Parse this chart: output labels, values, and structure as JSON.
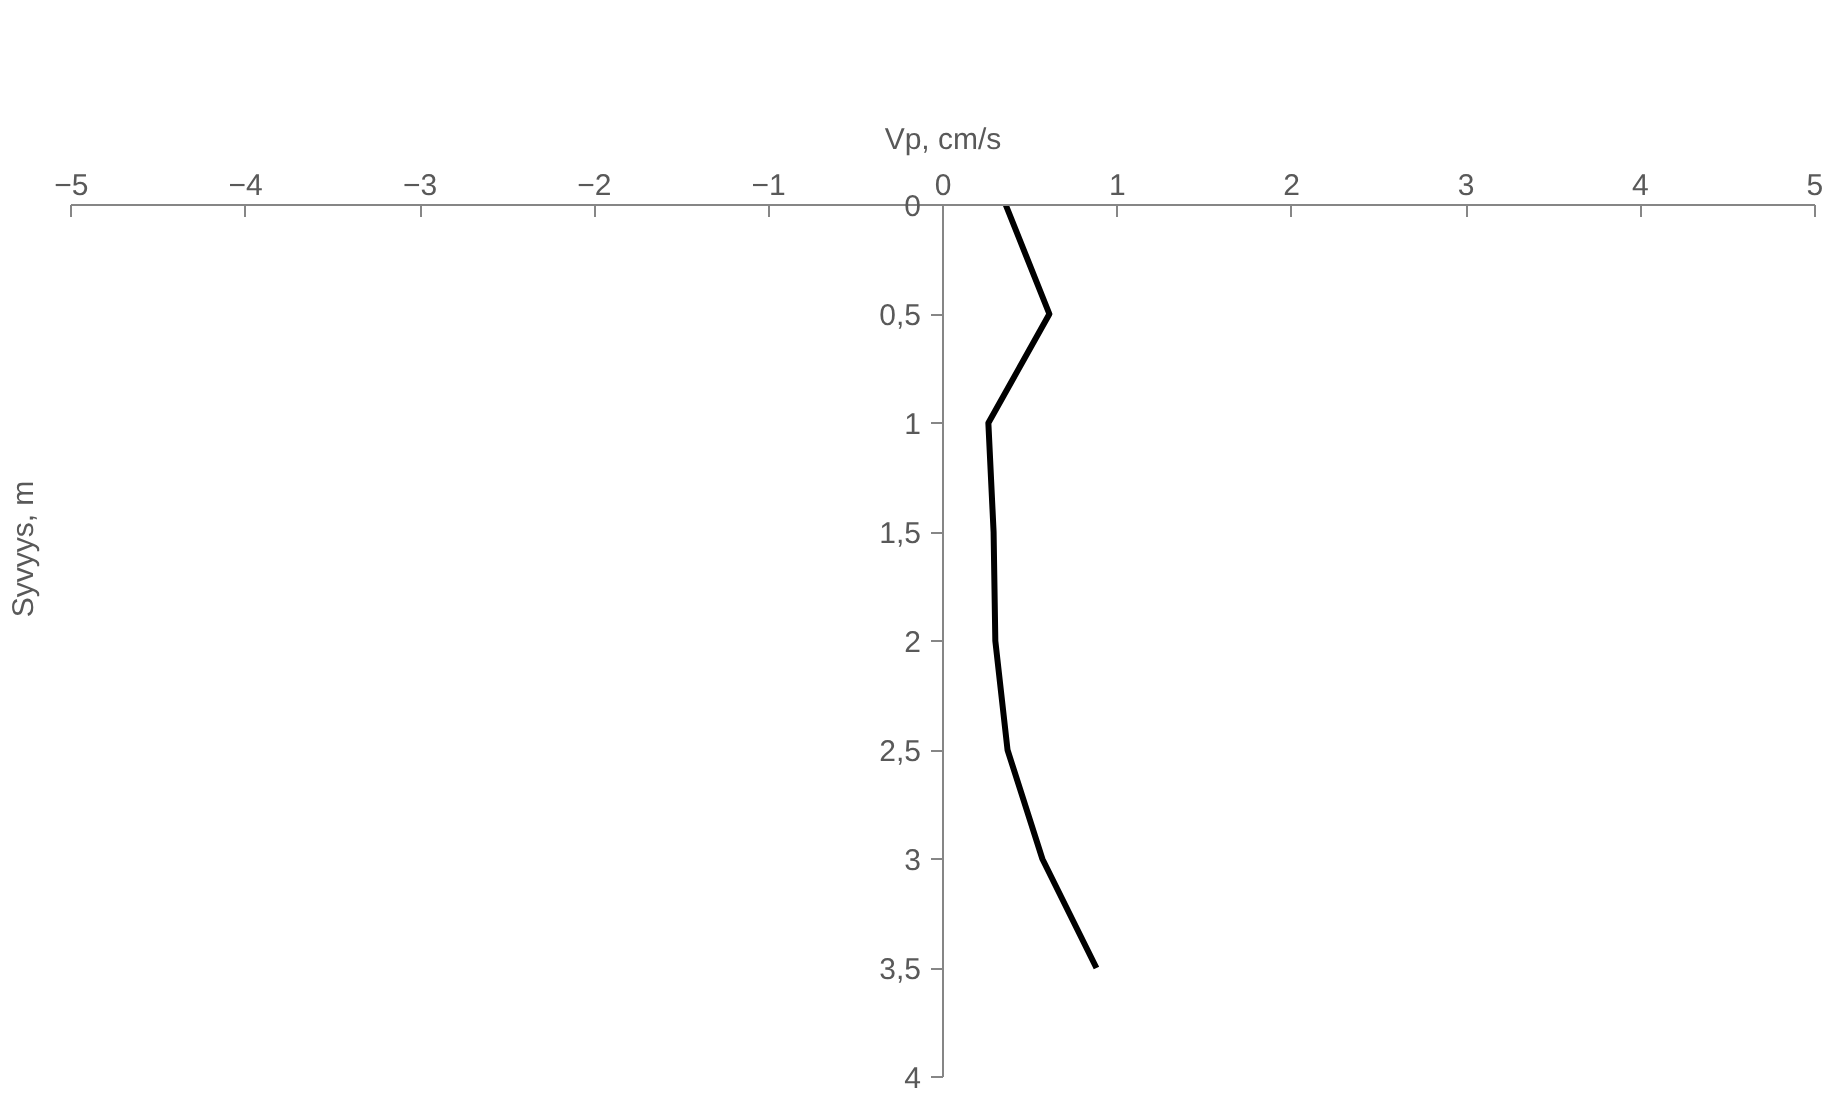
{
  "chart_data": {
    "type": "line",
    "xlabel": "Vp, cm/s",
    "ylabel": "Syvyys, m",
    "series": [
      {
        "color": "#000000",
        "x": [
          0.36,
          0.61,
          0.26,
          0.29,
          0.3,
          0.37,
          0.57,
          0.88
        ],
        "values": [
          0,
          0.5,
          1,
          1.5,
          2,
          2.5,
          3,
          3.5
        ]
      }
    ],
    "xlim": [
      -5,
      5
    ],
    "xticks": [
      -5,
      -4,
      -3,
      -2,
      -1,
      0,
      1,
      2,
      3,
      4,
      5
    ],
    "ylim": [
      4,
      0
    ],
    "yticks": [
      0,
      {
        "value": 0.5,
        "label": "0,5"
      },
      1,
      {
        "value": 1.5,
        "label": "1,5"
      },
      2,
      {
        "value": 2.5,
        "label": "2,5"
      },
      3,
      {
        "value": 3.5,
        "label": "3,5"
      },
      4
    ],
    "grid": false,
    "marker": "none",
    "line_style": "solid"
  }
}
